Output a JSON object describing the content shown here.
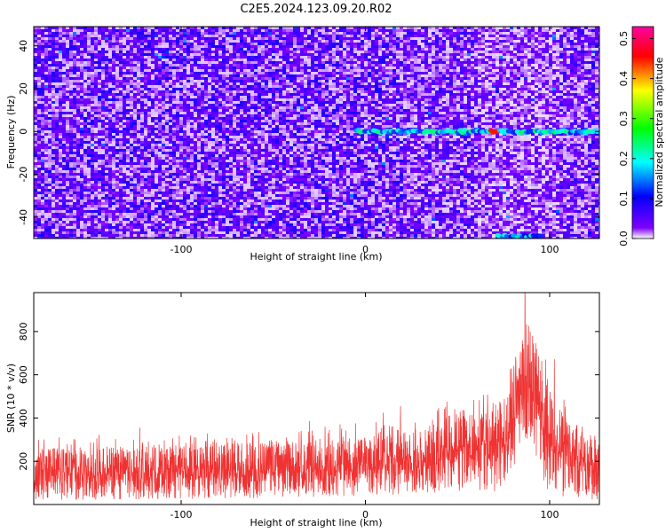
{
  "title": "C2E5.2024.123.09.20.R02",
  "chart_data": [
    {
      "type": "heatmap",
      "xlabel": "Height of straight line (km)",
      "ylabel": "Frequency (Hz)",
      "xlim": [
        -180,
        127
      ],
      "ylim": [
        -50,
        49
      ],
      "x_ticks": [
        -100,
        0,
        100
      ],
      "x_tick_labels": [
        "-100",
        "0",
        "100"
      ],
      "y_ticks": [
        40,
        20,
        0,
        -20,
        -40
      ],
      "y_tick_labels": [
        "40",
        "20",
        "0",
        "-20",
        "-40"
      ],
      "colorbar": {
        "label": "Normalized spectral amplitude",
        "range": [
          0,
          0.53
        ],
        "ticks": [
          0.0,
          0.1,
          0.2,
          0.3,
          0.4,
          0.5
        ],
        "tick_labels": [
          "0.0",
          "0.1",
          "0.2",
          "0.3",
          "0.4",
          "0.5"
        ],
        "colors": [
          "#ffffff",
          "#7f00ff",
          "#0000ff",
          "#00ffff",
          "#00ff00",
          "#ffff00",
          "#ff0000",
          "#ff00a0"
        ]
      },
      "features": [
        {
          "frequency_hz": 0,
          "x_start_km": -5,
          "x_end_km": 127,
          "amplitude": 0.18,
          "peak_x_km": 70,
          "peak_amplitude": 0.45
        },
        {
          "frequency_hz": -49,
          "x_start_km": 72,
          "x_end_km": 95,
          "amplitude": 0.16
        }
      ]
    },
    {
      "type": "line",
      "xlabel": "Height of straight line (km)",
      "ylabel": "SNR (10 * v/v)",
      "xlim": [
        -180,
        127
      ],
      "ylim": [
        0,
        980
      ],
      "x_ticks": [
        -100,
        0,
        100
      ],
      "x_tick_labels": [
        "-100",
        "0",
        "100"
      ],
      "y_ticks": [
        200,
        400,
        600,
        800
      ],
      "y_tick_labels": [
        "200",
        "400",
        "600",
        "800"
      ],
      "line_color": "#f03232",
      "envelope": [
        {
          "x": -180,
          "low": 20,
          "high": 300
        },
        {
          "x": -100,
          "low": 25,
          "high": 320
        },
        {
          "x": -50,
          "low": 30,
          "high": 340
        },
        {
          "x": 0,
          "low": 40,
          "high": 350
        },
        {
          "x": 30,
          "low": 50,
          "high": 400
        },
        {
          "x": 55,
          "low": 60,
          "high": 520
        },
        {
          "x": 70,
          "low": 60,
          "high": 500
        },
        {
          "x": 78,
          "low": 120,
          "high": 650
        },
        {
          "x": 84,
          "low": 250,
          "high": 850
        },
        {
          "x": 90,
          "low": 300,
          "high": 980
        },
        {
          "x": 95,
          "low": 150,
          "high": 720
        },
        {
          "x": 100,
          "low": 40,
          "high": 600
        },
        {
          "x": 110,
          "low": 30,
          "high": 480
        },
        {
          "x": 127,
          "low": 20,
          "high": 330
        }
      ]
    }
  ]
}
